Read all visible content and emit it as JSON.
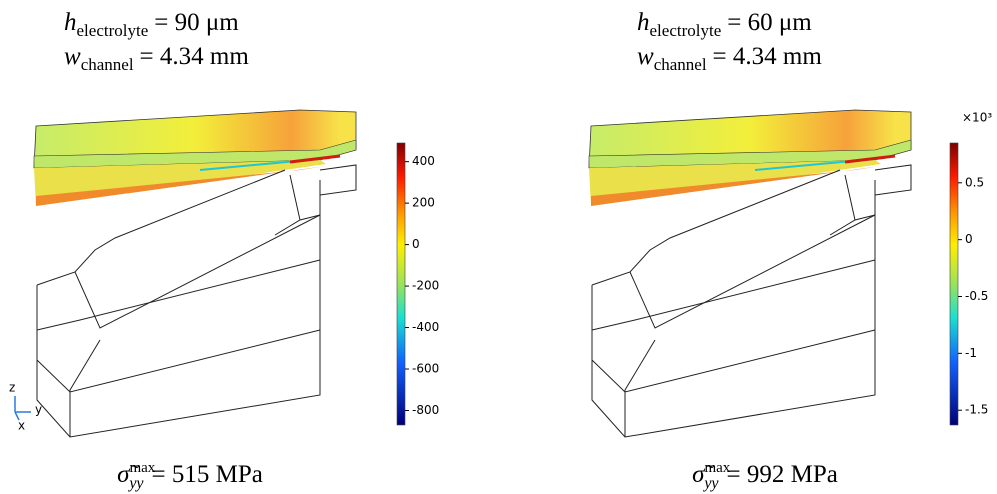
{
  "panels": [
    {
      "title_lines": [
        {
          "symbol": "h",
          "sub": "electrolyte",
          "text": "= 90 μm"
        },
        {
          "symbol": "w",
          "sub": "channel",
          "text": "= 4.34 mm"
        }
      ],
      "colorbar": {
        "range": [
          -870,
          490
        ],
        "ticks": [
          400,
          200,
          0,
          -200,
          -400,
          -600,
          -800
        ]
      },
      "result": {
        "symbol": "σ̃",
        "sub": "yy",
        "sup": "max",
        "text": "= 515 MPa"
      },
      "triad": {
        "z": "z",
        "y": "y",
        "x": "x"
      }
    },
    {
      "title_lines": [
        {
          "symbol": "h",
          "sub": "electrolyte",
          "text": "= 60 μm"
        },
        {
          "symbol": "w",
          "sub": "channel",
          "text": "= 4.34 mm"
        }
      ],
      "colorbar": {
        "multiplier": "×10³",
        "range": [
          -1.63,
          0.85
        ],
        "ticks": [
          0.5,
          0,
          -0.5,
          -1,
          -1.5
        ]
      },
      "result": {
        "symbol": "σ̃",
        "sub": "yy",
        "sup": "max",
        "text": "= 992 MPa"
      }
    }
  ]
}
